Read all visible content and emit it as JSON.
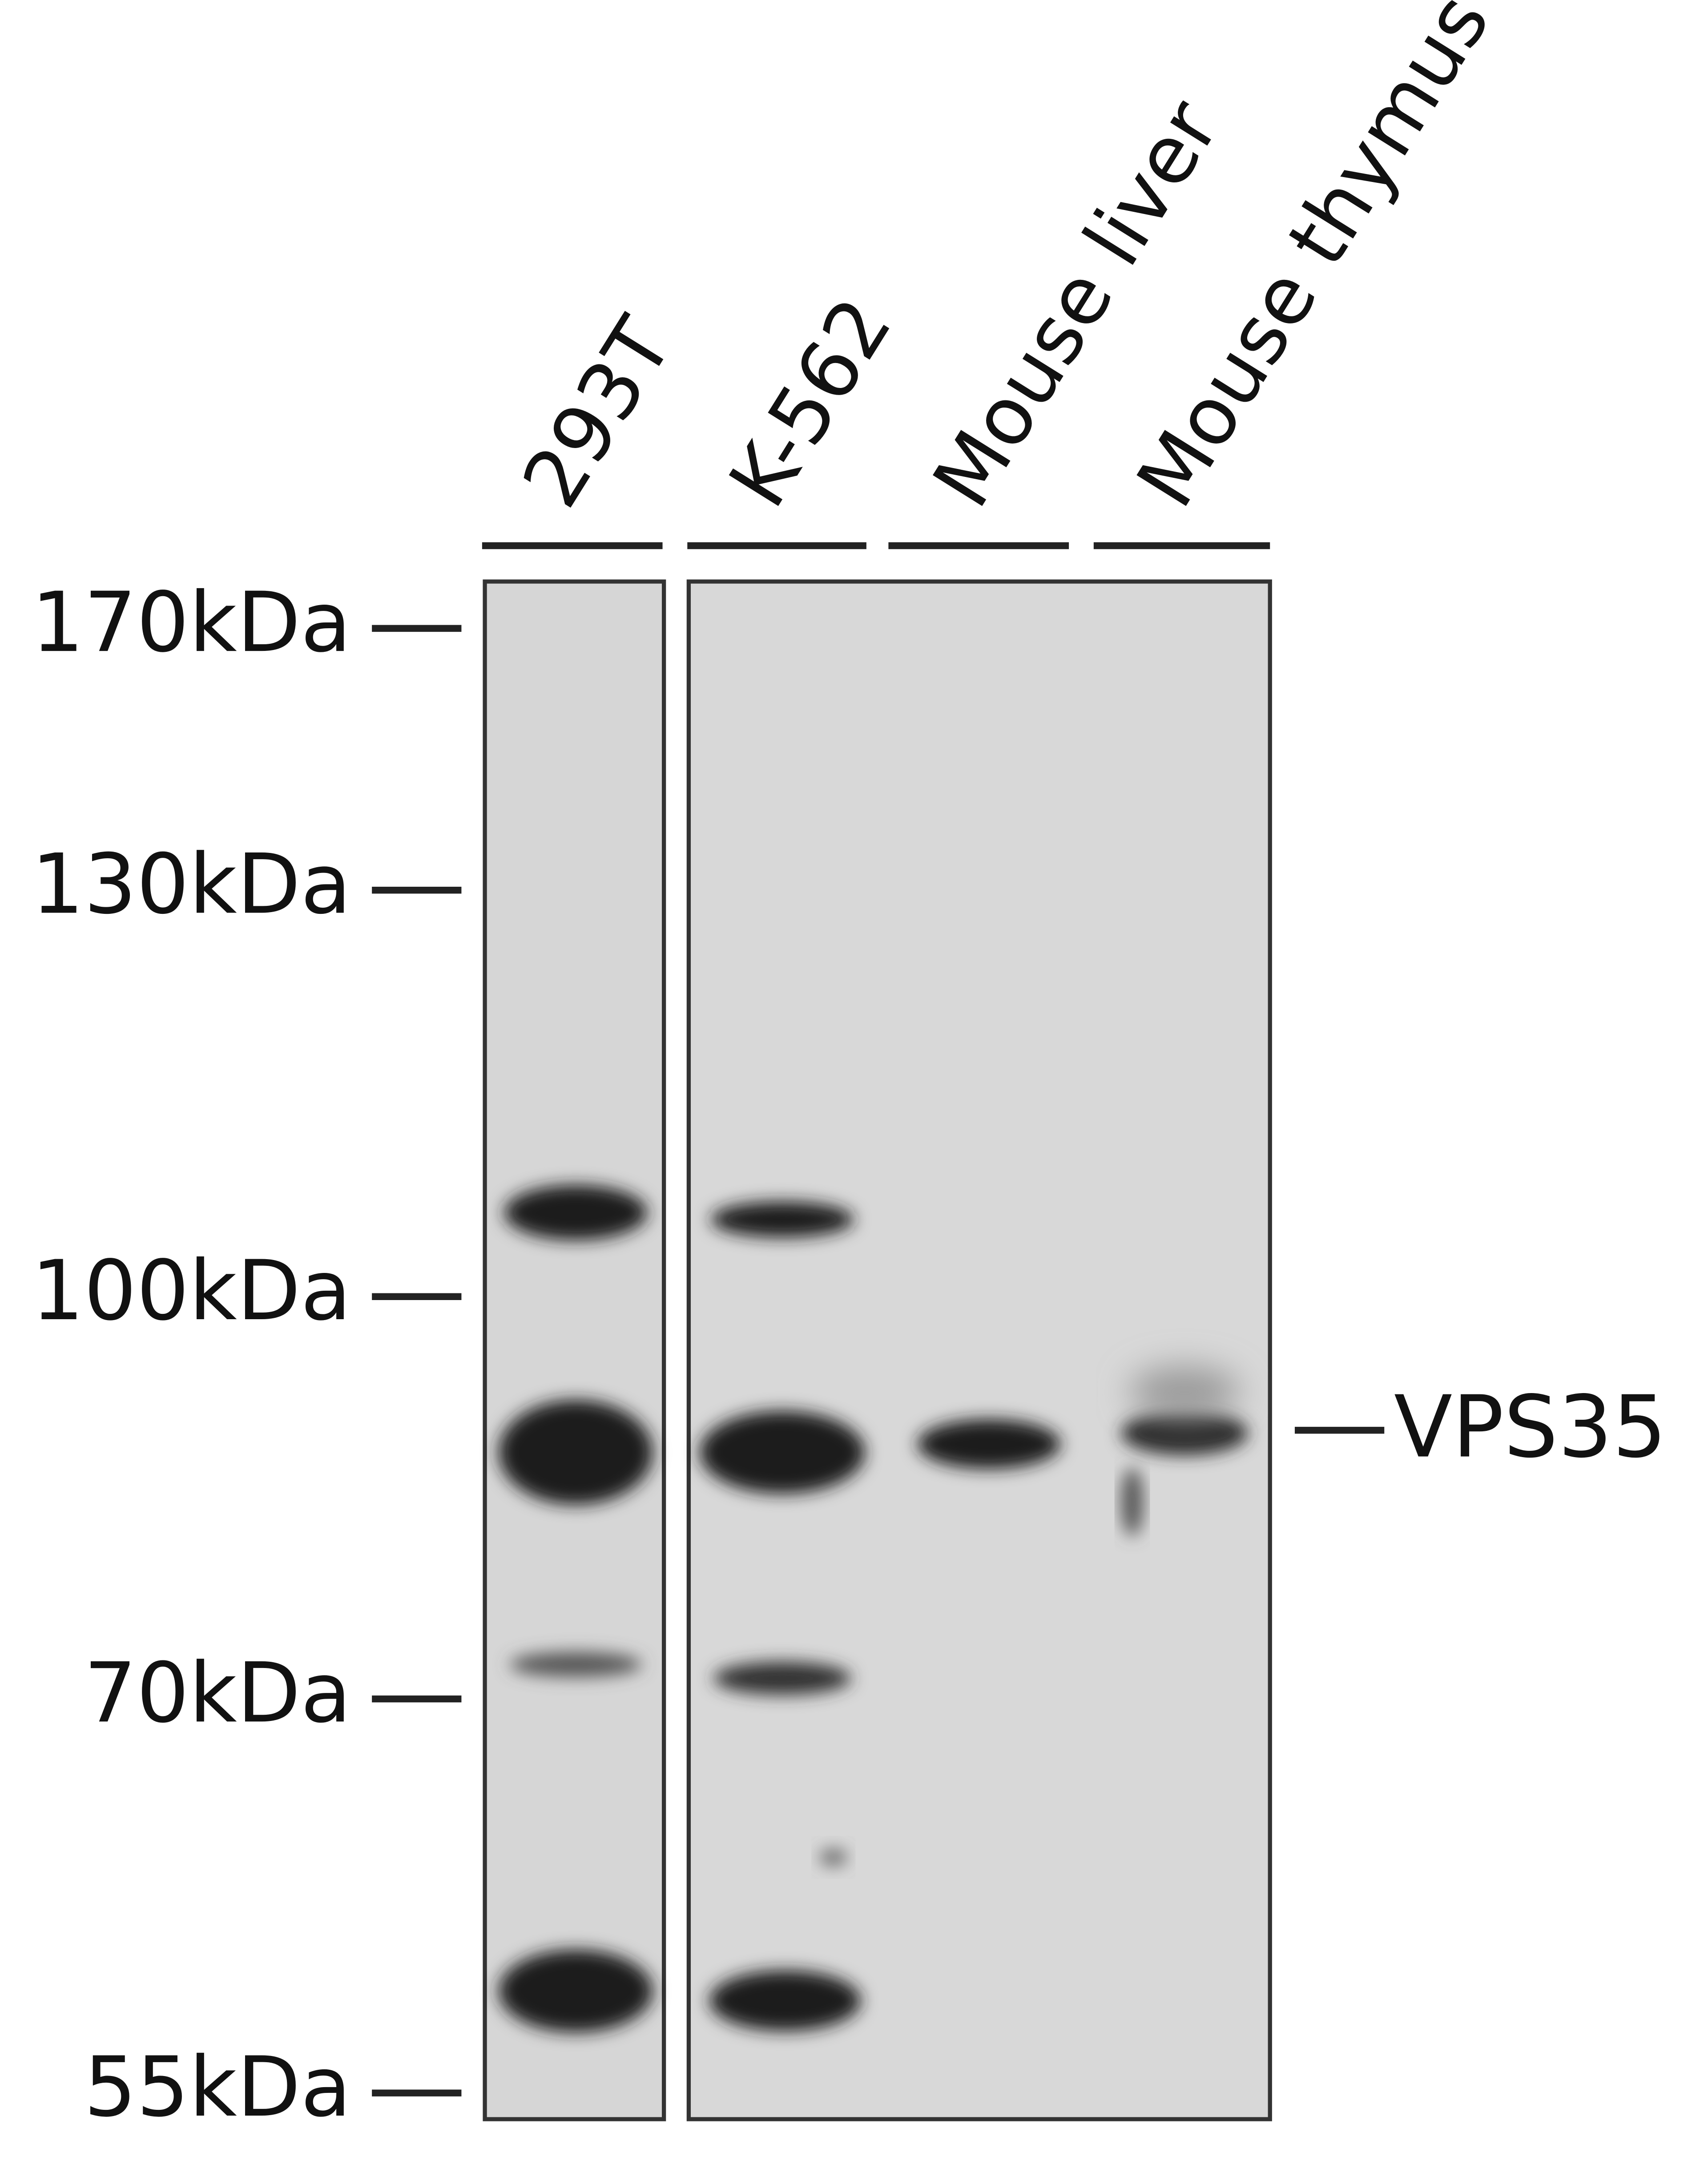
{
  "lanes": [
    "293T",
    "K-562",
    "Mouse liver",
    "Mouse thymus"
  ],
  "markers": [
    "170kDa",
    "130kDa",
    "100kDa",
    "70kDa",
    "55kDa"
  ],
  "target": "VPS35"
}
